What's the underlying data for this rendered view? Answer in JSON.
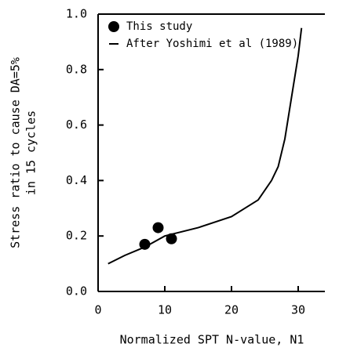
{
  "chart_data": {
    "type": "scatter",
    "xlabel": "Normalized SPT N-value, N1",
    "ylabel": [
      "Stress ratio to cause DA=5%",
      "in 15 cycles"
    ],
    "xlim": [
      0,
      34
    ],
    "ylim": [
      0,
      1.0
    ],
    "xticks": [
      0,
      10,
      20,
      30
    ],
    "yticks": [
      {
        "value": 0,
        "label": "0.0"
      },
      0.2,
      0.4,
      0.6,
      0.8,
      {
        "value": 1,
        "label": "1.0"
      }
    ],
    "legend": "upper left",
    "series": [
      {
        "name": "This study",
        "type": "scatter",
        "color": "#000000",
        "x": [
          7,
          9,
          11
        ],
        "values": [
          0.17,
          0.23,
          0.19
        ]
      },
      {
        "name": "After Yoshimi et al (1989)",
        "type": "line",
        "color": "#000000",
        "x": [
          1.5,
          4,
          7,
          10,
          15,
          20,
          24,
          26,
          27,
          28,
          29,
          30,
          30.5
        ],
        "values": [
          0.1,
          0.13,
          0.16,
          0.2,
          0.23,
          0.27,
          0.33,
          0.4,
          0.45,
          0.55,
          0.7,
          0.85,
          0.95
        ]
      }
    ]
  }
}
